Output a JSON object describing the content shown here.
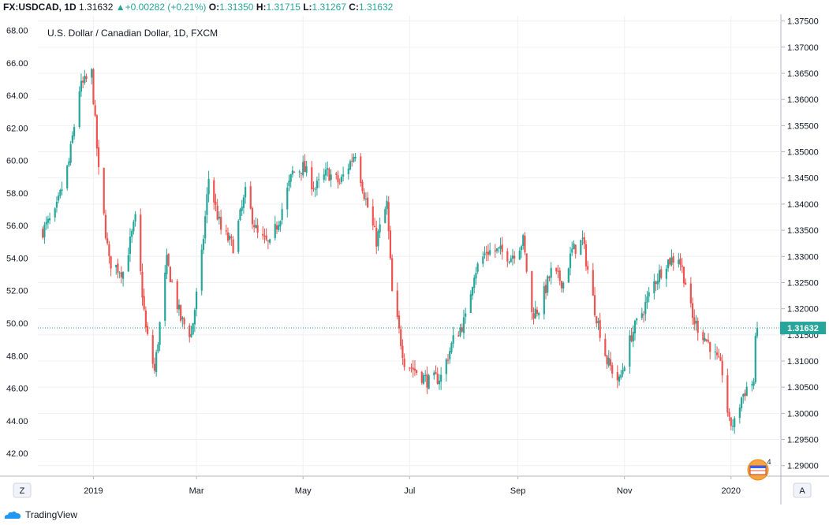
{
  "header": {
    "symbol": "FX:USDCAD, 1D",
    "last": "1.31632",
    "change": "+0.00282 (+0.21%)",
    "o_label": "O:",
    "o_val": "1.31350",
    "h_label": "H:",
    "h_val": "1.31715",
    "l_label": "L:",
    "l_val": "1.31267",
    "c_label": "C:",
    "c_val": "1.31632",
    "up_arrow": "▲"
  },
  "chart_data": {
    "type": "candlestick",
    "title": "U.S. Dollar / Canadian Dollar, 1D, FXCM",
    "left_axis": {
      "ticks": [
        "42.00",
        "44.00",
        "46.00",
        "48.00",
        "50.00",
        "52.00",
        "54.00",
        "56.00",
        "58.00",
        "60.00",
        "62.00",
        "64.00",
        "66.00",
        "68.00"
      ],
      "range": [
        40.6,
        68.9
      ]
    },
    "right_axis": {
      "ticks": [
        "1.29000",
        "1.29500",
        "1.30000",
        "1.30500",
        "1.31000",
        "1.31500",
        "1.32000",
        "1.32500",
        "1.33000",
        "1.33500",
        "1.34000",
        "1.34500",
        "1.35000",
        "1.35500",
        "1.36000",
        "1.36500",
        "1.37000",
        "1.37500"
      ],
      "range": [
        1.288,
        1.376
      ]
    },
    "x_axis": {
      "ticks": [
        "2019",
        "Mar",
        "May",
        "Jul",
        "Sep",
        "Nov",
        "2020"
      ],
      "start": "2018-12-02",
      "end": "2020-01-16"
    },
    "last_price": "1.31632",
    "last_price_value": 1.31632,
    "bull_color": "#26a69a",
    "bear_color": "#ef5350",
    "anchors": [
      [
        "2018-12-03",
        1.335
      ],
      [
        "2018-12-10",
        1.338
      ],
      [
        "2018-12-18",
        1.348
      ],
      [
        "2018-12-24",
        1.362
      ],
      [
        "2018-12-31",
        1.365
      ],
      [
        "2019-01-04",
        1.346
      ],
      [
        "2019-01-10",
        1.329
      ],
      [
        "2019-01-18",
        1.327
      ],
      [
        "2019-01-25",
        1.337
      ],
      [
        "2019-01-31",
        1.316
      ],
      [
        "2019-02-05",
        1.308
      ],
      [
        "2019-02-12",
        1.329
      ],
      [
        "2019-02-20",
        1.318
      ],
      [
        "2019-02-26",
        1.315
      ],
      [
        "2019-03-04",
        1.33
      ],
      [
        "2019-03-08",
        1.345
      ],
      [
        "2019-03-15",
        1.335
      ],
      [
        "2019-03-22",
        1.332
      ],
      [
        "2019-03-29",
        1.342
      ],
      [
        "2019-04-05",
        1.334
      ],
      [
        "2019-04-12",
        1.332
      ],
      [
        "2019-04-18",
        1.338
      ],
      [
        "2019-04-25",
        1.346
      ],
      [
        "2019-05-01",
        1.347
      ],
      [
        "2019-05-08",
        1.343
      ],
      [
        "2019-05-15",
        1.346
      ],
      [
        "2019-05-22",
        1.344
      ],
      [
        "2019-05-31",
        1.35
      ],
      [
        "2019-06-05",
        1.342
      ],
      [
        "2019-06-12",
        1.333
      ],
      [
        "2019-06-18",
        1.34
      ],
      [
        "2019-06-21",
        1.323
      ],
      [
        "2019-06-28",
        1.31
      ],
      [
        "2019-07-05",
        1.308
      ],
      [
        "2019-07-12",
        1.306
      ],
      [
        "2019-07-19",
        1.307
      ],
      [
        "2019-07-26",
        1.314
      ],
      [
        "2019-08-02",
        1.318
      ],
      [
        "2019-08-07",
        1.327
      ],
      [
        "2019-08-14",
        1.331
      ],
      [
        "2019-08-21",
        1.331
      ],
      [
        "2019-08-28",
        1.33
      ],
      [
        "2019-09-04",
        1.333
      ],
      [
        "2019-09-09",
        1.319
      ],
      [
        "2019-09-13",
        1.32
      ],
      [
        "2019-09-20",
        1.327
      ],
      [
        "2019-09-27",
        1.325
      ],
      [
        "2019-10-02",
        1.331
      ],
      [
        "2019-10-08",
        1.333
      ],
      [
        "2019-10-15",
        1.32
      ],
      [
        "2019-10-22",
        1.31
      ],
      [
        "2019-10-29",
        1.306
      ],
      [
        "2019-11-05",
        1.315
      ],
      [
        "2019-11-12",
        1.32
      ],
      [
        "2019-11-18",
        1.325
      ],
      [
        "2019-11-25",
        1.329
      ],
      [
        "2019-12-02",
        1.33
      ],
      [
        "2019-12-06",
        1.325
      ],
      [
        "2019-12-10",
        1.318
      ],
      [
        "2019-12-16",
        1.315
      ],
      [
        "2019-12-20",
        1.313
      ],
      [
        "2019-12-27",
        1.308
      ],
      [
        "2019-12-31",
        1.298
      ],
      [
        "2020-01-03",
        1.298
      ],
      [
        "2020-01-07",
        1.303
      ],
      [
        "2020-01-10",
        1.305
      ],
      [
        "2020-01-14",
        1.306
      ],
      [
        "2020-01-15",
        1.3135
      ],
      [
        "2020-01-16",
        1.3163
      ]
    ]
  },
  "toolbar": {
    "left_button": "Z",
    "right_button": "A"
  },
  "badge": {
    "count": "4"
  },
  "footer": {
    "brand": "TradingView"
  }
}
